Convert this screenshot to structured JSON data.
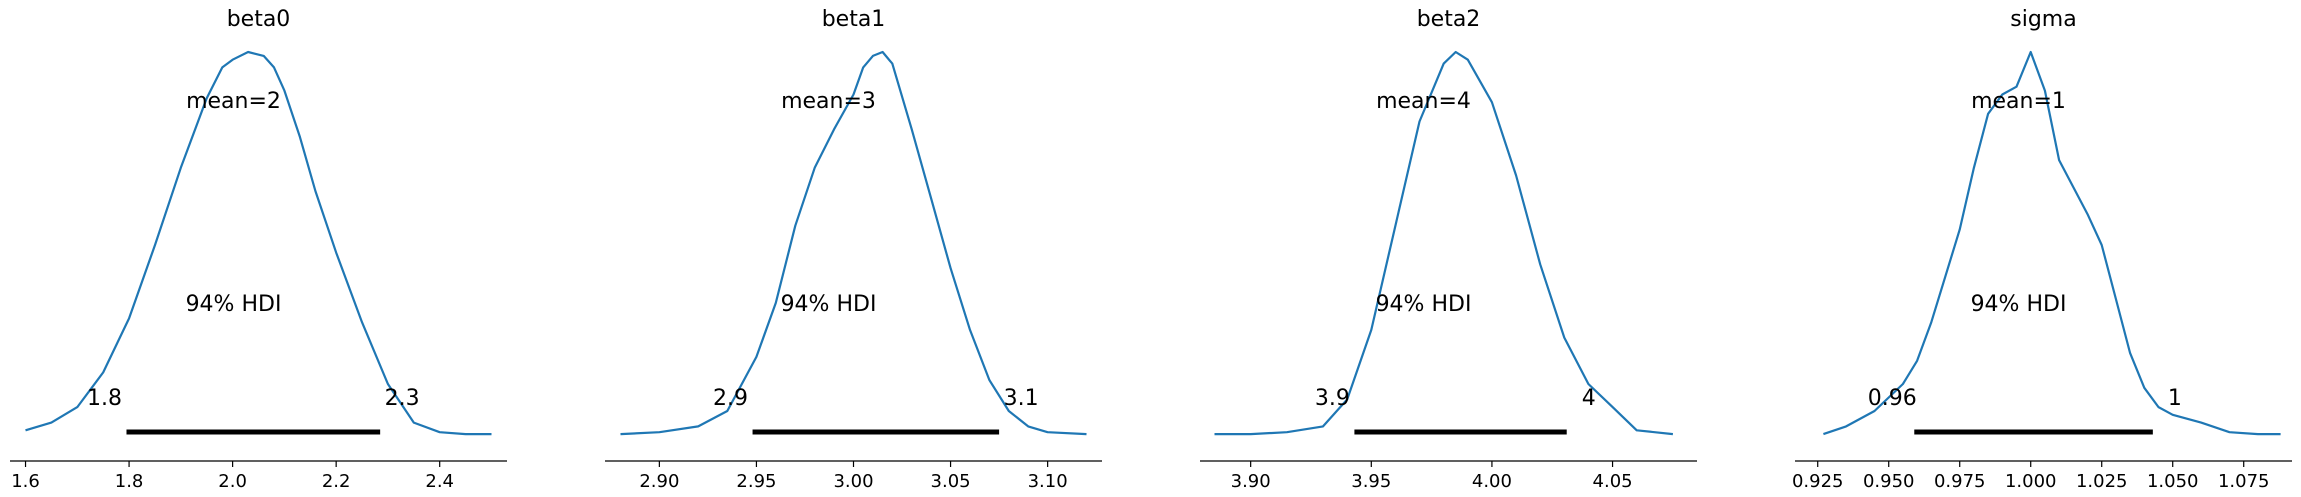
{
  "chart_data": [
    {
      "type": "line",
      "title": "beta0",
      "mean_label": "mean=2",
      "hdi_label": "94% HDI",
      "hdi_low": 1.795,
      "hdi_high": 2.285,
      "hdi_low_label": "1.8",
      "hdi_high_label": "2.3",
      "xlim": [
        1.57,
        2.53
      ],
      "xticks": [
        1.6,
        1.8,
        2.0,
        2.2,
        2.4
      ],
      "xtick_labels": [
        "1.6",
        "1.8",
        "2.0",
        "2.2",
        "2.4"
      ],
      "x": [
        1.6,
        1.65,
        1.7,
        1.75,
        1.8,
        1.85,
        1.9,
        1.95,
        1.98,
        2.0,
        2.03,
        2.06,
        2.08,
        2.1,
        2.13,
        2.16,
        2.2,
        2.25,
        2.3,
        2.35,
        2.4,
        2.45,
        2.5
      ],
      "y": [
        0.02,
        0.04,
        0.08,
        0.17,
        0.31,
        0.5,
        0.7,
        0.88,
        0.96,
        0.98,
        1.0,
        0.99,
        0.96,
        0.9,
        0.78,
        0.64,
        0.48,
        0.3,
        0.14,
        0.04,
        0.015,
        0.01,
        0.01
      ]
    },
    {
      "type": "line",
      "title": "beta1",
      "mean_label": "mean=3",
      "hdi_label": "94% HDI",
      "hdi_low": 2.948,
      "hdi_high": 3.075,
      "hdi_low_label": "2.9",
      "hdi_high_label": "3.1",
      "xlim": [
        2.872,
        3.128
      ],
      "xticks": [
        2.9,
        2.95,
        3.0,
        3.05,
        3.1
      ],
      "xtick_labels": [
        "2.90",
        "2.95",
        "3.00",
        "3.05",
        "3.10"
      ],
      "x": [
        2.88,
        2.9,
        2.92,
        2.935,
        2.95,
        2.96,
        2.97,
        2.98,
        2.99,
        3.0,
        3.005,
        3.01,
        3.015,
        3.02,
        3.03,
        3.04,
        3.05,
        3.06,
        3.07,
        3.08,
        3.09,
        3.1,
        3.12
      ],
      "y": [
        0.01,
        0.015,
        0.03,
        0.07,
        0.21,
        0.35,
        0.55,
        0.7,
        0.8,
        0.89,
        0.96,
        0.99,
        1.0,
        0.97,
        0.8,
        0.62,
        0.44,
        0.28,
        0.15,
        0.07,
        0.03,
        0.015,
        0.01
      ]
    },
    {
      "type": "line",
      "title": "beta2",
      "mean_label": "mean=4",
      "hdi_label": "94% HDI",
      "hdi_low": 3.943,
      "hdi_high": 4.031,
      "hdi_low_label": "3.9",
      "hdi_high_label": "4",
      "xlim": [
        3.879,
        4.085
      ],
      "xticks": [
        3.9,
        3.95,
        4.0,
        4.05
      ],
      "xtick_labels": [
        "3.90",
        "3.95",
        "4.00",
        "4.05"
      ],
      "x": [
        3.885,
        3.9,
        3.915,
        3.93,
        3.94,
        3.95,
        3.96,
        3.97,
        3.98,
        3.985,
        3.99,
        4.0,
        4.01,
        4.02,
        4.03,
        4.04,
        4.05,
        4.06,
        4.075
      ],
      "y": [
        0.01,
        0.01,
        0.015,
        0.03,
        0.1,
        0.28,
        0.55,
        0.82,
        0.97,
        1.0,
        0.98,
        0.87,
        0.68,
        0.45,
        0.26,
        0.14,
        0.08,
        0.02,
        0.01
      ]
    },
    {
      "type": "line",
      "title": "sigma",
      "mean_label": "mean=1",
      "hdi_label": "94% HDI",
      "hdi_low": 0.959,
      "hdi_high": 1.043,
      "hdi_low_label": "0.96",
      "hdi_high_label": "1",
      "xlim": [
        0.917,
        1.092
      ],
      "xticks": [
        0.925,
        0.95,
        0.975,
        1.0,
        1.025,
        1.05,
        1.075
      ],
      "xtick_labels": [
        "0.925",
        "0.950",
        "0.975",
        "1.000",
        "1.025",
        "1.050",
        "1.075"
      ],
      "x": [
        0.927,
        0.935,
        0.945,
        0.955,
        0.96,
        0.965,
        0.97,
        0.975,
        0.98,
        0.985,
        0.99,
        0.995,
        1.0,
        1.005,
        1.01,
        1.015,
        1.02,
        1.025,
        1.03,
        1.035,
        1.04,
        1.045,
        1.05,
        1.06,
        1.07,
        1.08,
        1.088
      ],
      "y": [
        0.01,
        0.03,
        0.07,
        0.14,
        0.2,
        0.3,
        0.42,
        0.54,
        0.7,
        0.84,
        0.89,
        0.91,
        1.0,
        0.9,
        0.72,
        0.65,
        0.58,
        0.5,
        0.36,
        0.22,
        0.13,
        0.08,
        0.06,
        0.04,
        0.015,
        0.01,
        0.01
      ]
    }
  ]
}
